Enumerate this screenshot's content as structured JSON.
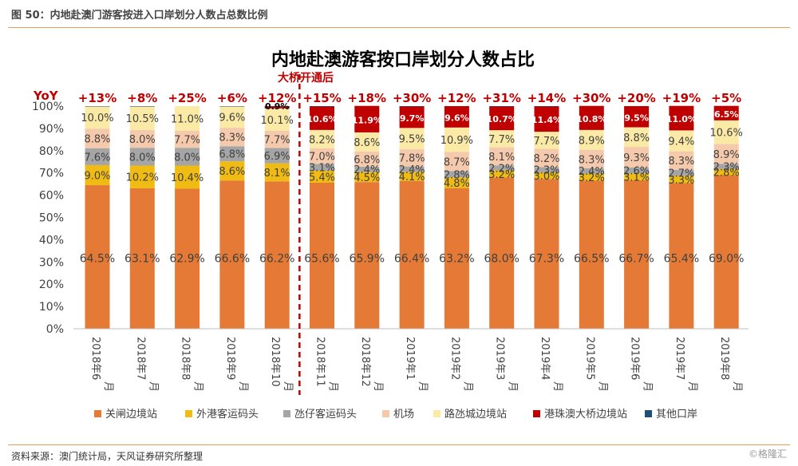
{
  "figure_label": "图 50：内地赴澳门游客按进入口岸划分人数占总数比例",
  "source_note": "资料来源：澳门统计局，天风证券研究所整理",
  "watermark": "©格隆汇",
  "colors": {
    "关闸边境站": "#e47a35",
    "外港客运码头": "#f0bb12",
    "氹仔客运码头": "#a5a5a5",
    "机场": "#f5c9ac",
    "路氹城边境站": "#fbe9a6",
    "港珠澳大桥边境站": "#c00000",
    "其他口岸": "#1f4e79",
    "yoy_text": "#c00000",
    "bridge_line": "#c00000"
  },
  "chart_data": {
    "type": "stacked-bar",
    "title": "内地赴澳游客按口岸划分人数占比",
    "annotation": "大桥开通后",
    "yoy_label": "YoY",
    "ylim": [
      0,
      100
    ],
    "yticks": [
      "0%",
      "10%",
      "20%",
      "30%",
      "40%",
      "50%",
      "60%",
      "70%",
      "80%",
      "90%",
      "100%"
    ],
    "categories": [
      "2018年6月",
      "2018年7月",
      "2018年8月",
      "2018年9月",
      "2018年10月",
      "2018年11月",
      "2018年12月",
      "2019年1月",
      "2019年2月",
      "2019年3月",
      "2019年4月",
      "2019年5月",
      "2019年6月",
      "2019年7月",
      "2019年8月"
    ],
    "yoy": [
      "+13%",
      "+8%",
      "+25%",
      "+6%",
      "+12%",
      "+15%",
      "+18%",
      "+30%",
      "+12%",
      "+31%",
      "+14%",
      "+30%",
      "+20%",
      "+19%",
      "+5%"
    ],
    "series": [
      {
        "name": "关闸边境站",
        "values": [
          64.5,
          63.1,
          62.9,
          66.6,
          66.2,
          65.6,
          65.9,
          66.4,
          63.2,
          68.0,
          67.3,
          66.5,
          66.7,
          65.4,
          69.0
        ]
      },
      {
        "name": "外港客运码头",
        "values": [
          9.0,
          10.2,
          10.4,
          8.6,
          8.1,
          5.4,
          4.5,
          4.1,
          4.8,
          3.2,
          3.0,
          3.2,
          3.1,
          3.3,
          2.8
        ]
      },
      {
        "name": "氹仔客运码头",
        "values": [
          7.6,
          8.0,
          8.0,
          6.8,
          6.9,
          3.1,
          2.4,
          2.4,
          2.8,
          2.2,
          2.3,
          2.4,
          2.6,
          2.7,
          2.3
        ]
      },
      {
        "name": "机场",
        "values": [
          8.8,
          8.0,
          7.7,
          8.3,
          7.7,
          7.0,
          6.8,
          7.8,
          8.7,
          8.1,
          8.2,
          8.3,
          9.3,
          8.3,
          8.9
        ]
      },
      {
        "name": "路氹城边境站",
        "values": [
          10.0,
          10.5,
          11.0,
          9.6,
          10.1,
          8.2,
          8.6,
          9.5,
          10.9,
          7.7,
          7.7,
          8.9,
          8.8,
          9.4,
          10.6
        ]
      },
      {
        "name": "港珠澳大桥边境站",
        "values": [
          0,
          0,
          0,
          0,
          0.9,
          10.6,
          11.9,
          9.7,
          9.6,
          10.7,
          11.4,
          10.8,
          9.5,
          11.0,
          6.5
        ]
      },
      {
        "name": "其他口岸",
        "values": [
          0.1,
          0.2,
          0,
          0.1,
          0.1,
          0.1,
          0,
          0.1,
          0,
          0.1,
          0.1,
          0,
          0,
          0,
          0
        ]
      }
    ],
    "value_labels": [
      [
        "64.5%",
        "9.0%",
        "7.6%",
        "8.8%",
        "10.0%",
        "",
        ""
      ],
      [
        "63.1%",
        "10.2%",
        "8.0%",
        "8.0%",
        "10.5%",
        "",
        ""
      ],
      [
        "62.9%",
        "10.4%",
        "8.0%",
        "7.7%",
        "11.0%",
        "",
        ""
      ],
      [
        "66.6%",
        "8.6%",
        "6.8%",
        "8.3%",
        "9.6%",
        "",
        ""
      ],
      [
        "66.2%",
        "8.1%",
        "6.9%",
        "7.7%",
        "10.1%",
        "0.9%",
        ""
      ],
      [
        "65.6%",
        "5.4%",
        "3.1%",
        "7.0%",
        "8.2%",
        "10.6%",
        ""
      ],
      [
        "65.9%",
        "4.5%",
        "2.4%",
        "6.8%",
        "8.6%",
        "11.9%",
        ""
      ],
      [
        "66.4%",
        "4.1%",
        "2.4%",
        "7.8%",
        "9.5%",
        "9.7%",
        ""
      ],
      [
        "63.2%",
        "4.8%",
        "2.8%",
        "8.7%",
        "10.9%",
        "9.6%",
        ""
      ],
      [
        "68.0%",
        "3.2%",
        "2.2%",
        "8.1%",
        "7.7%",
        "10.7%",
        ""
      ],
      [
        "67.3%",
        "3.0%",
        "2.3%",
        "8.2%",
        "7.7%",
        "11.4%",
        ""
      ],
      [
        "66.5%",
        "3.2%",
        "2.4%",
        "8.3%",
        "8.9%",
        "10.8%",
        ""
      ],
      [
        "66.7%",
        "3.1%",
        "2.6%",
        "9.3%",
        "8.8%",
        "9.5%",
        ""
      ],
      [
        "65.4%",
        "3.3%",
        "2.7%",
        "8.3%",
        "9.4%",
        "11.0%",
        ""
      ],
      [
        "69.0%",
        "2.8%",
        "2.3%",
        "8.9%",
        "10.6%",
        "6.5%",
        ""
      ]
    ],
    "bridge_divider_after_index": 4,
    "legend_position": "bottom"
  }
}
